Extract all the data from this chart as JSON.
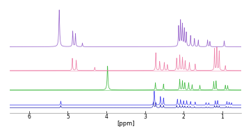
{
  "xlim": [
    6.5,
    0.5
  ],
  "xlabel": "[ppm]",
  "xlabel_fontsize": 6,
  "tick_fontsize": 5.5,
  "xticks": [
    6,
    5,
    4,
    3,
    2,
    1
  ],
  "background_color": "#ffffff",
  "colors": {
    "purple": "#9966CC",
    "pink": "#EE82AA",
    "green": "#44BB44",
    "blue": "#4444EE",
    "dark_blue": "#2222AA"
  },
  "offsets": {
    "purple": 0.6,
    "pink": 0.38,
    "green": 0.2,
    "blue": 0.06
  },
  "peak_scale": {
    "purple": 0.34,
    "pink": 0.22,
    "green": 0.22,
    "blue": 0.13
  }
}
